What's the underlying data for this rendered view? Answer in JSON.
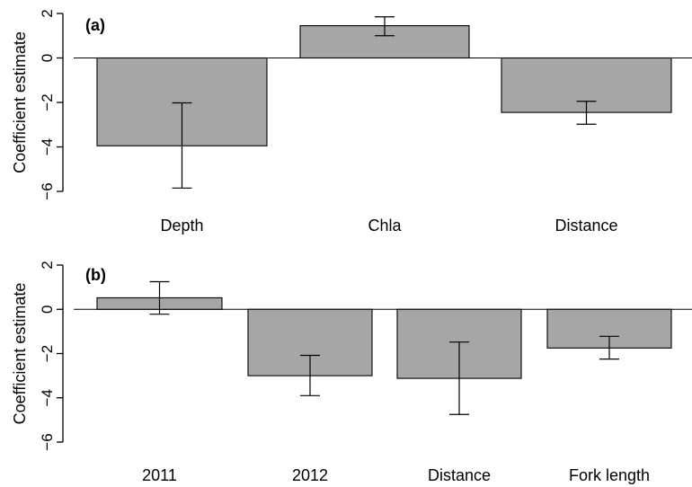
{
  "chart_data": [
    {
      "type": "bar",
      "panel_label": "(a)",
      "ylabel": "Coefficient estimate",
      "categories": [
        "Depth",
        "Chla",
        "Distance"
      ],
      "values": [
        -3.95,
        1.45,
        -2.45
      ],
      "error_low": [
        -5.85,
        1.0,
        -2.98
      ],
      "error_high": [
        -2.02,
        1.85,
        -1.95
      ],
      "ylim": [
        -6,
        2
      ],
      "yticks": [
        -6,
        -4,
        -2,
        0,
        2
      ],
      "bar_color": "#a6a6a6",
      "zero_line": true
    },
    {
      "type": "bar",
      "panel_label": "(b)",
      "ylabel": "Coefficient estimate",
      "categories": [
        "2011",
        "2012",
        "Distance",
        "Fork length"
      ],
      "values": [
        0.52,
        -3.0,
        -3.12,
        -1.75
      ],
      "error_low": [
        -0.22,
        -3.9,
        -4.75,
        -2.25
      ],
      "error_high": [
        1.25,
        -2.08,
        -1.48,
        -1.22
      ],
      "ylim": [
        -6,
        2
      ],
      "yticks": [
        -6,
        -4,
        -2,
        0,
        2
      ],
      "bar_color": "#a6a6a6",
      "zero_line": true
    }
  ]
}
